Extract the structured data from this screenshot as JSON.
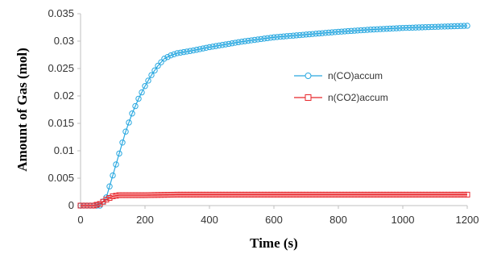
{
  "chart_data": {
    "type": "scatter",
    "title": "",
    "xlabel": "Time (s)",
    "ylabel": "Amount of Gas (mol)",
    "xlim": [
      0,
      1200
    ],
    "ylim": [
      0,
      0.035
    ],
    "x_ticks": [
      "0",
      "200",
      "400",
      "600",
      "800",
      "1000",
      "1200"
    ],
    "y_ticks": [
      "0",
      "0.005",
      "0.01",
      "0.015",
      "0.02",
      "0.025",
      "0.03",
      "0.035"
    ],
    "grid": false,
    "legend_position": "right-center",
    "colors": {
      "co": "#29a8e0",
      "co2": "#e8262b",
      "axis": "#bfbfbf"
    },
    "series": [
      {
        "name": "n(CO)accum",
        "marker": "circle",
        "color": "#29a8e0",
        "x": [
          0,
          60,
          80,
          100,
          120,
          140,
          160,
          180,
          200,
          220,
          240,
          260,
          280,
          300,
          350,
          400,
          500,
          600,
          700,
          800,
          900,
          1000,
          1100,
          1200
        ],
        "y": [
          0,
          0,
          0.0015,
          0.0055,
          0.0095,
          0.0135,
          0.0168,
          0.0195,
          0.0218,
          0.0238,
          0.0255,
          0.0268,
          0.0274,
          0.0278,
          0.0283,
          0.0289,
          0.0299,
          0.0307,
          0.0312,
          0.0317,
          0.0321,
          0.0324,
          0.0326,
          0.0328
        ]
      },
      {
        "name": "n(CO2)accum",
        "marker": "square",
        "color": "#e8262b",
        "x": [
          0,
          40,
          60,
          80,
          100,
          120,
          200,
          300,
          600,
          900,
          1200
        ],
        "y": [
          0,
          0,
          0.0003,
          0.0011,
          0.0017,
          0.0019,
          0.0019,
          0.002,
          0.002,
          0.002,
          0.002
        ]
      }
    ]
  }
}
